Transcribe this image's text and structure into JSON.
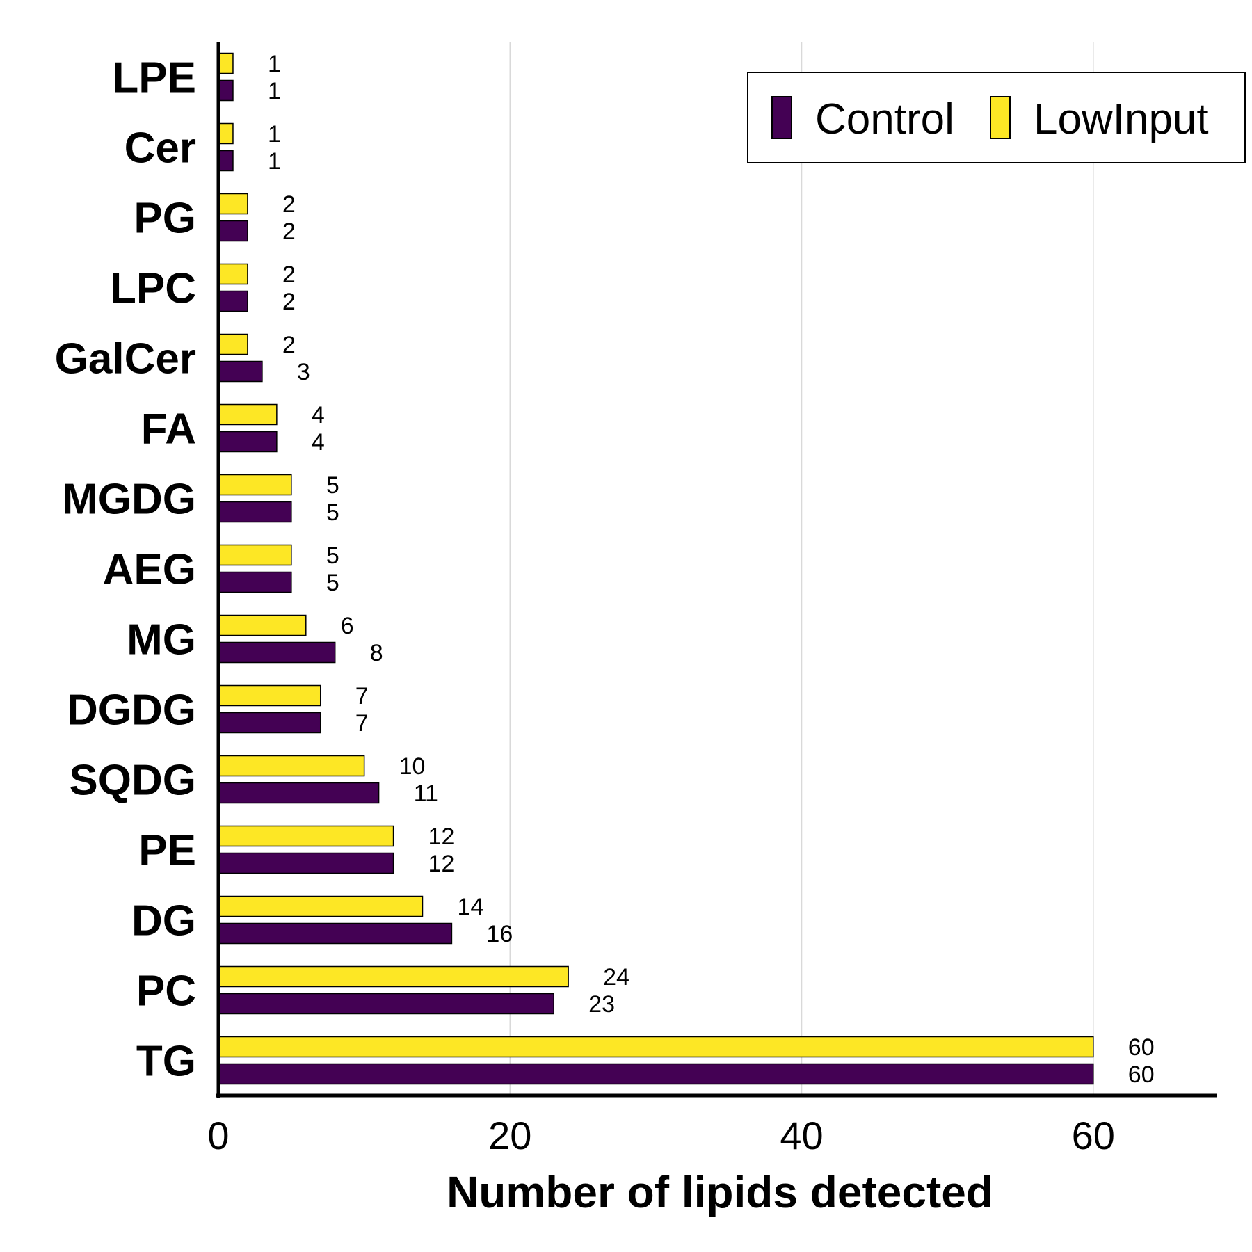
{
  "chart_data": {
    "type": "bar",
    "orientation": "horizontal",
    "categories": [
      "LPE",
      "Cer",
      "PG",
      "LPC",
      "GalCer",
      "FA",
      "MGDG",
      "AEG",
      "MG",
      "DGDG",
      "SQDG",
      "PE",
      "DG",
      "PC",
      "TG"
    ],
    "series": [
      {
        "name": "Control",
        "color": "#440154",
        "values": [
          1,
          1,
          2,
          2,
          3,
          4,
          5,
          5,
          8,
          7,
          11,
          12,
          16,
          23,
          60
        ]
      },
      {
        "name": "LowInput",
        "color": "#FDE725",
        "values": [
          1,
          1,
          2,
          2,
          2,
          4,
          5,
          5,
          6,
          7,
          10,
          12,
          14,
          24,
          60
        ]
      }
    ],
    "xlabel": "Number of lipids detected",
    "ylabel": "",
    "xlim": [
      0,
      68.5
    ],
    "xticks": [
      0,
      20,
      40,
      60
    ],
    "grid": "vertical",
    "legend_position": "top-right",
    "data_labels": true
  }
}
